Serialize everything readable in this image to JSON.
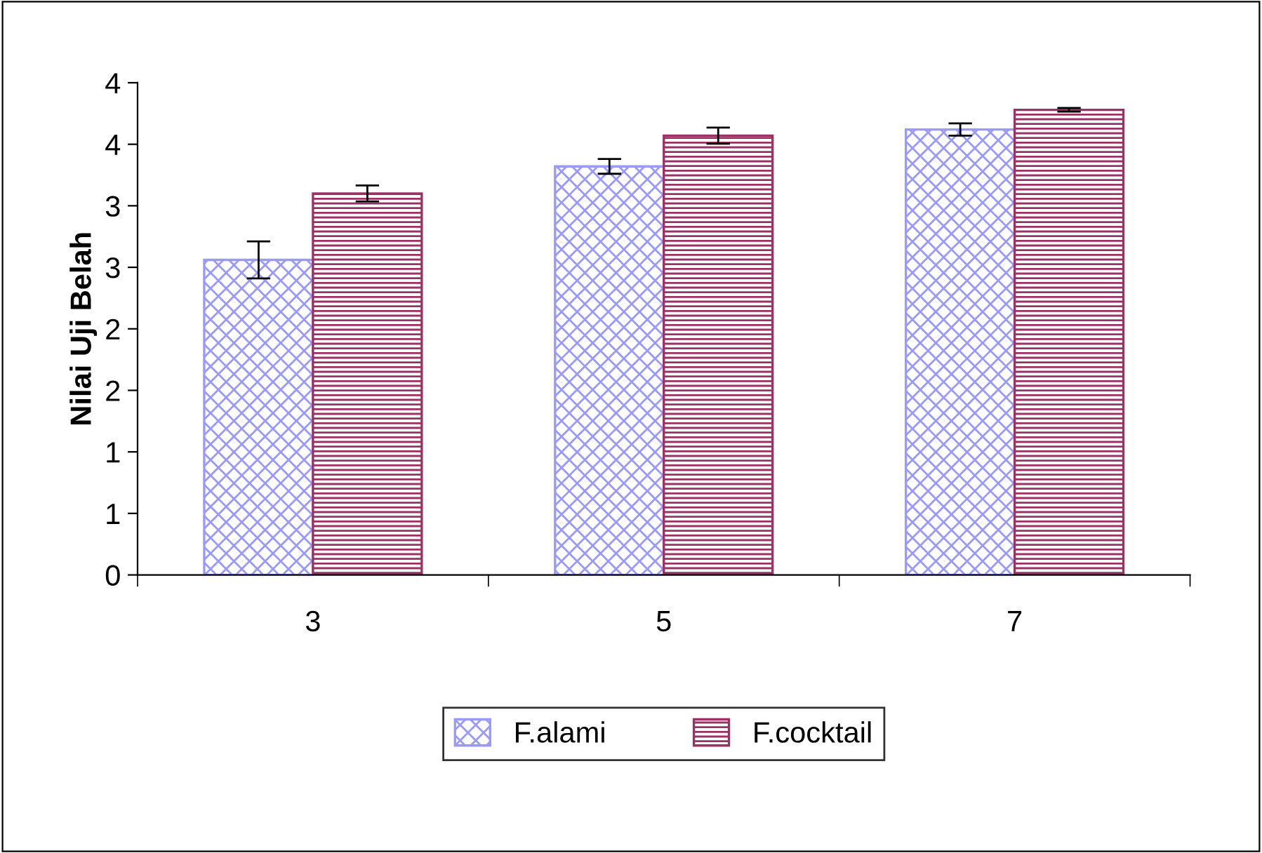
{
  "chart_data": {
    "type": "bar",
    "ylabel": "Nilai Uji Belah",
    "categories": [
      "3",
      "5",
      "7"
    ],
    "series": [
      {
        "name": "F.alami",
        "color": "#9999ff",
        "values": [
          2.56,
          3.32,
          3.62
        ],
        "errors": [
          0.15,
          0.06,
          0.05
        ]
      },
      {
        "name": "F.cocktail",
        "color": "#993366",
        "values": [
          3.1,
          3.57,
          3.78
        ],
        "errors": [
          0.065,
          0.065,
          0.015
        ]
      }
    ],
    "ylim": [
      0,
      4
    ],
    "yticks": [
      0,
      {
        "value": 0.5,
        "label": "1"
      },
      1,
      {
        "value": 1.5,
        "label": "2"
      },
      2,
      {
        "value": 2.5,
        "label": "3"
      },
      3,
      {
        "value": 3.5,
        "label": "4"
      },
      4
    ],
    "grid": false,
    "legend": "bottom"
  }
}
